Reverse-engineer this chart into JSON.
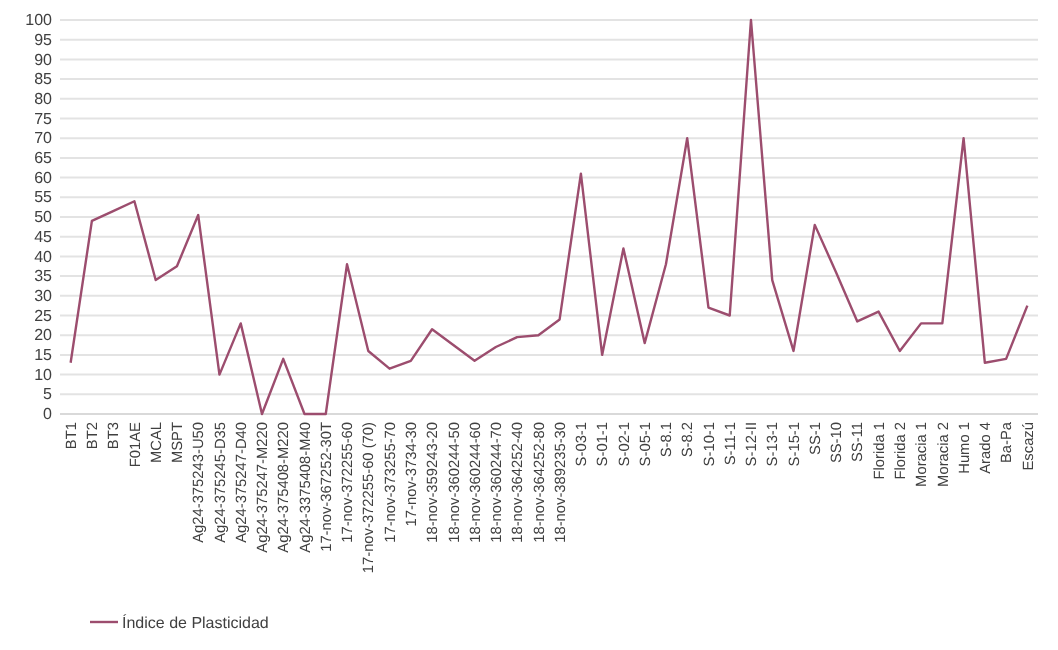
{
  "chart_data": {
    "type": "line",
    "categories": [
      "BT1",
      "BT2",
      "BT3",
      "F01AE",
      "MCAL",
      "MSPT",
      "Ag24-375243-U50",
      "Ag24-375245-D35",
      "Ag24-375247-D40",
      "Ag24-375247-M220",
      "Ag24-375408-M220",
      "Ag24-3375408-M40",
      "17-nov-367252-30T",
      "17-nov-372255-60",
      "17-nov-372255-60 (70)",
      "17-nov-373255-70",
      "17-nov-3734-30",
      "18-nov-359243-20",
      "18-nov-360244-50",
      "18-nov-360244-60",
      "18-nov-360244-70",
      "18-nov-364252-40",
      "18-nov-364252-80",
      "18-nov-389235-30",
      "S-03-1",
      "S-01-1",
      "S-02-1",
      "S-05-1",
      "S-8.1",
      "S-8.2",
      "S-10-1",
      "S-11-1",
      "S-12-II",
      "S-13-1",
      "S-15-1",
      "SS-1",
      "SS-10",
      "SS-11",
      "Florida 1",
      "Florida 2",
      "Moracia 1",
      "Moracia 2",
      "Humo 1",
      "Arado 4",
      "Ba-Pa",
      "Escazú"
    ],
    "series": [
      {
        "name": "Índice de Plasticidad",
        "color": "#9c4d6e",
        "values": [
          13,
          49,
          51.5,
          54,
          34,
          37.5,
          50.5,
          10,
          23,
          0,
          14,
          0,
          0,
          38,
          16,
          11.5,
          13.5,
          21.5,
          17.5,
          13.5,
          17,
          19.5,
          20,
          24,
          61,
          15,
          42,
          18,
          38,
          70,
          27,
          25,
          100,
          34,
          16,
          48,
          36,
          23.5,
          26,
          16,
          23,
          23,
          70,
          13,
          14,
          27.5
        ]
      }
    ],
    "ylim": [
      0,
      100
    ],
    "yticks": [
      0,
      5,
      10,
      15,
      20,
      25,
      30,
      35,
      40,
      45,
      50,
      55,
      60,
      65,
      70,
      75,
      80,
      85,
      90,
      95,
      100
    ],
    "grid": "y",
    "legend": "bottom left",
    "marker": "none",
    "line_style": "solid"
  }
}
